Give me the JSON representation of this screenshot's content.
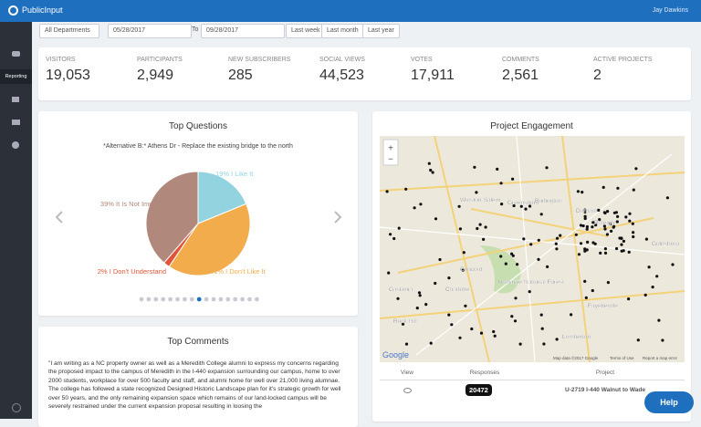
{
  "header": {
    "brand": "PublicInput",
    "user": "Jay Dawkins"
  },
  "sidebar": {
    "active": "Reporting"
  },
  "filters": {
    "department": "All Departments",
    "from": "05/28/2017",
    "to_label": "To",
    "to": "09/28/2017",
    "buttons": [
      "Last week",
      "Last month",
      "Last year"
    ]
  },
  "stats": [
    {
      "label": "VISITORS",
      "value": "19,053"
    },
    {
      "label": "PARTICIPANTS",
      "value": "2,949"
    },
    {
      "label": "NEW SUBSCRIBERS",
      "value": "285"
    },
    {
      "label": "SOCIAL VIEWS",
      "value": "44,523"
    },
    {
      "label": "VOTES",
      "value": "17,911"
    },
    {
      "label": "COMMENTS",
      "value": "2,561"
    },
    {
      "label": "ACTIVE PROJECTS",
      "value": "2"
    }
  ],
  "top_questions": {
    "title": "Top Questions",
    "question": "*Alternative B:* Athens Dr - Replace the existing bridge to the north",
    "chart": {
      "type": "pie",
      "categories": [
        "I Like It",
        "I Don't Like It",
        "I Don't Understand",
        "It Is Not Important To Me"
      ],
      "values": [
        19,
        41,
        2,
        39
      ],
      "value_labels": [
        "19% I Like It",
        "41% I Don't Like It",
        "2% I Don't Understand",
        "39% It Is Not Important To Me"
      ],
      "colors": [
        "#93d3e0",
        "#f2ac4c",
        "#e0553a",
        "#b0887c"
      ]
    }
  },
  "project_engagement": {
    "title": "Project Engagement",
    "map_labels": [
      "Winston-Salem",
      "Greensboro",
      "Burlington",
      "Durham",
      "Raleigh",
      "Concord",
      "Charlotte",
      "Gastonia",
      "Rock Hill",
      "Fayetteville",
      "Lumberton",
      "Goldsboro",
      "Uwharrie National Forest"
    ],
    "map_footer": [
      "Google",
      "Map data ©2017 Google",
      "Terms of Use",
      "Report a map error"
    ],
    "table": {
      "headers": [
        "View",
        "Responses",
        "Project"
      ],
      "rows": [
        [
          "20472",
          "U-2719 I-440 Walnut to Wade"
        ]
      ]
    }
  },
  "top_comments": {
    "title": "Top Comments",
    "text": "\"I am writing as a NC property owner as well as a Meredith College alumni to express my concerns regarding the proposed impact to the campus of Meredith in the I-440 expansion surrounding our campus, home to over 2000 students, workplace for over 500 faculty and staff, and alumni home for well over 21,000 living alumnae. The college has followed a state recognized Designed Historic Landscape plan for it's strategic growth for well over 50 years, and the only remaining expansion space which remains of our land-locked campus will be severely restrained under the current expansion proposal resulting in loosing the"
  },
  "help": "Help"
}
